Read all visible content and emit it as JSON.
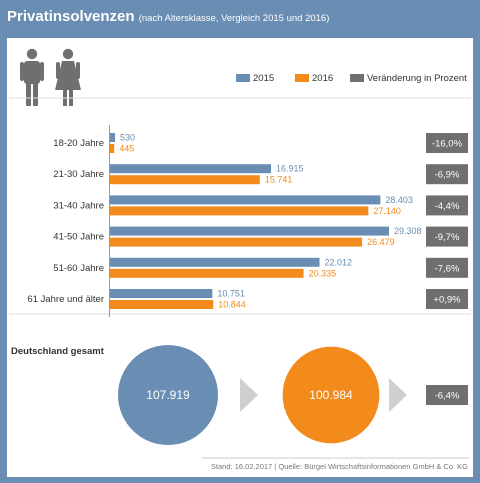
{
  "header": {
    "title": "Privatinsolvenzen",
    "subtitle": "(nach Altersklasse, Vergleich 2015 und 2016)"
  },
  "colors": {
    "series_2015": "#6a8db3",
    "series_2016": "#f28a1c",
    "change": "#6f6f6f",
    "arrow": "#cfcfcf",
    "figure_icon": "#6f6f6f"
  },
  "icons": [
    "male-figure-icon",
    "female-figure-icon"
  ],
  "chart_data": {
    "type": "bar",
    "orientation": "horizontal",
    "categories": [
      "18-20 Jahre",
      "21-30 Jahre",
      "31-40 Jahre",
      "41-50 Jahre",
      "51-60 Jahre",
      "61 Jahre und älter"
    ],
    "series": [
      {
        "name": "2015",
        "values": [
          530,
          16915,
          28403,
          29308,
          22012,
          10751
        ],
        "labels": [
          "530",
          "16.915",
          "28.403",
          "29.308",
          "22.012",
          "10.751"
        ]
      },
      {
        "name": "2016",
        "values": [
          445,
          15741,
          27140,
          26479,
          20335,
          10844
        ],
        "labels": [
          "445",
          "15.741",
          "27.140",
          "26.479",
          "20.335",
          "10.844"
        ]
      }
    ],
    "change_legend": "Veränderung in Prozent",
    "change_labels": [
      "-16,0%",
      "-6,9%",
      "-4,4%",
      "-9,7%",
      "-7,6%",
      "+0,9%"
    ],
    "legend_position": "top-right",
    "total": {
      "label": "Deutschland gesamt",
      "value_2015": 107919,
      "value_2015_label": "107.919",
      "value_2016": 100984,
      "value_2016_label": "100.984",
      "change_label": "-6,4%"
    }
  },
  "footer": {
    "source": "Stand: 16.02.2017 | Quelle: Bürgel Wirtschaftsinformationen GmbH & Co. KG"
  }
}
